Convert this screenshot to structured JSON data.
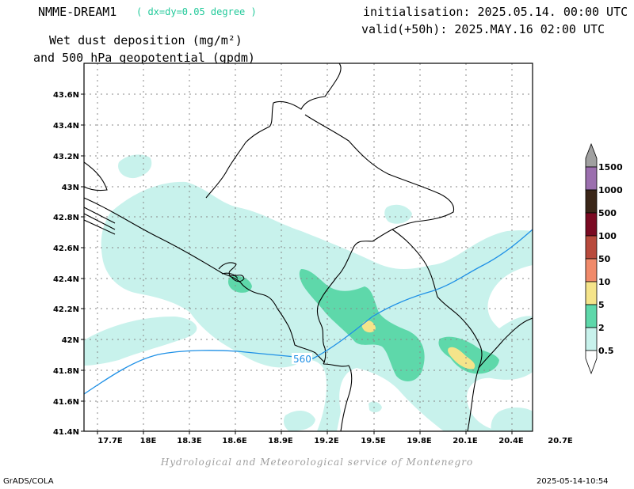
{
  "header": {
    "model": "NMME-DREAM1",
    "resolution": "( dx=dy=0.05 degree )",
    "initialisation": "initialisation: 2025.05.14. 00:00 UTC",
    "valid": "valid(+50h): 2025.MAY.16 02:00 UTC",
    "variable_line1": "Wet dust deposition (mg/m²)",
    "variable_line2": "and 500 hPa geopotential (gpdm)"
  },
  "map": {
    "lat_ticks": [
      "43.6N",
      "43.4N",
      "43.2N",
      "43N",
      "42.8N",
      "42.6N",
      "42.4N",
      "42.2N",
      "42N",
      "41.8N",
      "41.6N",
      "41.4N"
    ],
    "lon_ticks": [
      "17.7E",
      "18E",
      "18.3E",
      "18.6E",
      "18.9E",
      "19.2E",
      "19.5E",
      "19.8E",
      "20.1E",
      "20.4E",
      "20.7E"
    ],
    "contour_label": "560",
    "contour_color": "#1e90e6",
    "border_color": "#000000",
    "grid_color": "#888888"
  },
  "legend": {
    "levels": [
      "1500",
      "1000",
      "500",
      "100",
      "50",
      "10",
      "5",
      "2",
      "0.5"
    ],
    "colors": {
      "top_arrow": "#a0a0a0",
      "1000": "#9b6fae",
      "500": "#3a2618",
      "100": "#7a0a22",
      "50": "#b84a3c",
      "10": "#f08a6a",
      "5": "#f5e48a",
      "2": "#5ed8aa",
      "0.5": "#c8f2ec"
    }
  },
  "footer": {
    "credit": "Hydrological and Meteorological service of Montenegro",
    "software": "GrADS/COLA",
    "timestamp": "2025-05-14-10:54"
  }
}
